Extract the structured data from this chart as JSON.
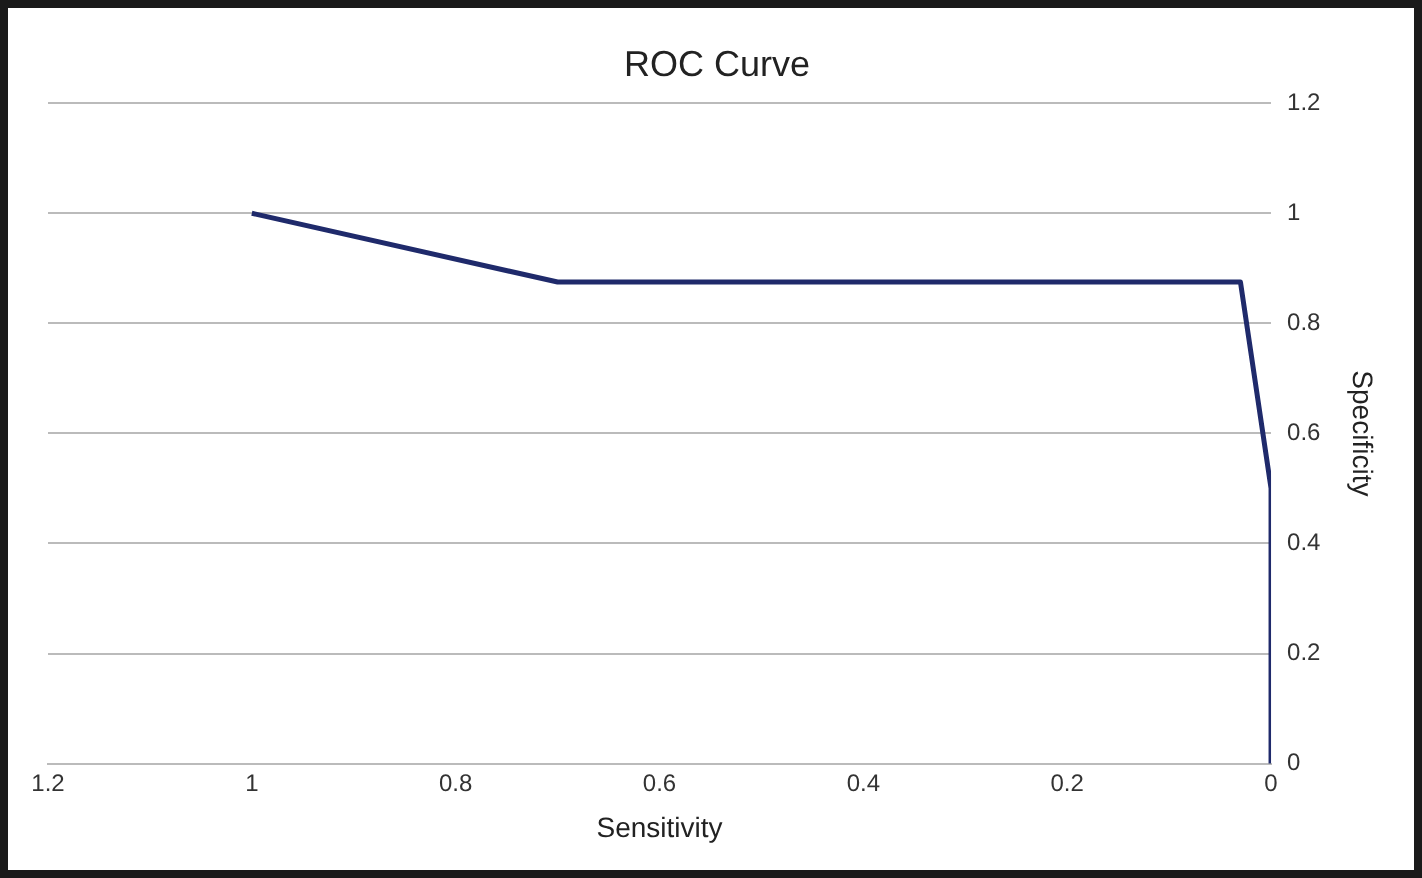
{
  "chart_data": {
    "type": "line",
    "title": "ROC Curve",
    "xlabel": "Sensitivity",
    "ylabel": "Specificity",
    "x": [
      1,
      0.7,
      0.03,
      0,
      0
    ],
    "series": [
      {
        "color": "#1f2a6b",
        "values": [
          1,
          0.875,
          0.875,
          0.5,
          0
        ]
      }
    ],
    "xlim": [
      1.2,
      0
    ],
    "xticks": [
      1.2,
      1,
      0.8,
      0.6,
      0.4,
      0.2,
      0
    ],
    "ylim": [
      0,
      1.2
    ],
    "yticks": [
      0,
      0.2,
      0.4,
      0.6,
      0.8,
      1,
      1.2
    ],
    "grid": "y",
    "legend": false,
    "marker": "none",
    "line_style": "solid"
  }
}
